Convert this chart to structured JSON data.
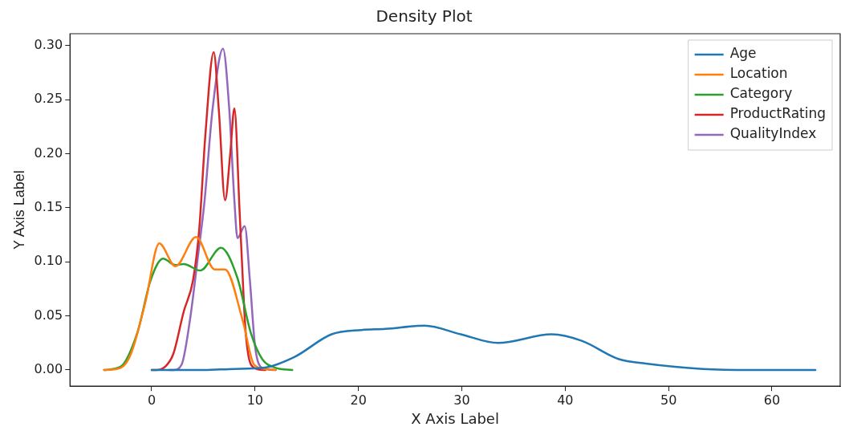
{
  "chart_data": {
    "type": "line",
    "title": "Density Plot",
    "xlabel": "X Axis Label",
    "ylabel": "Y Axis Label",
    "xlim": [
      -7.9,
      66.6
    ],
    "ylim": [
      -0.015,
      0.311
    ],
    "xticks": [
      0,
      10,
      20,
      30,
      40,
      50,
      60
    ],
    "yticks": [
      {
        "value": 0,
        "label": "0.00"
      },
      {
        "value": 0.05,
        "label": "0.05"
      },
      {
        "value": 0.1,
        "label": "0.10"
      },
      {
        "value": 0.15,
        "label": "0.15"
      },
      {
        "value": 0.2,
        "label": "0.20"
      },
      {
        "value": 0.25,
        "label": "0.25"
      },
      {
        "value": 0.3,
        "label": "0.30"
      }
    ],
    "legend": "top right",
    "grid": false,
    "marker": "none",
    "line_style": "solid",
    "series": [
      {
        "name": "Age",
        "color": "#1f77b4",
        "x": [
          0,
          5,
          8,
          10.8,
          13.8,
          17.4,
          20.3,
          22.6,
          26.4,
          29.9,
          33.5,
          38.7,
          41.6,
          45.2,
          47.8,
          53.3,
          58,
          64.2
        ],
        "values": [
          0,
          0,
          0.001,
          0.002,
          0.012,
          0.033,
          0.037,
          0.038,
          0.041,
          0.033,
          0.025,
          0.033,
          0.027,
          0.01,
          0.006,
          0.001,
          0,
          0
        ]
      },
      {
        "name": "Location",
        "color": "#ff7f0e",
        "x": [
          -4.6,
          -3,
          -2,
          -0.6,
          0.73,
          2.3,
          4.3,
          6.1,
          7.1,
          8.8,
          9.9,
          11,
          12
        ],
        "values": [
          0,
          0.002,
          0.015,
          0.063,
          0.117,
          0.096,
          0.123,
          0.093,
          0.093,
          0.046,
          0.005,
          0.001,
          0
        ]
      },
      {
        "name": "Category",
        "color": "#2ca02c",
        "x": [
          -4.6,
          -3,
          -1.4,
          -0.1,
          1.1,
          2.3,
          3.1,
          4.7,
          6.7,
          8.3,
          9.6,
          10.7,
          12,
          13.6
        ],
        "values": [
          0,
          0.003,
          0.034,
          0.083,
          0.103,
          0.097,
          0.098,
          0.092,
          0.113,
          0.085,
          0.034,
          0.01,
          0.002,
          0
        ]
      },
      {
        "name": "ProductRating",
        "color": "#d62728",
        "x": [
          0,
          0.5,
          1.3,
          2.1,
          3.1,
          4,
          4.6,
          5.2,
          6,
          6.5,
          7.1,
          7.6,
          8,
          8.5,
          8.7,
          9.1,
          9.9,
          11
        ],
        "values": [
          0,
          0,
          0.003,
          0.015,
          0.054,
          0.083,
          0.13,
          0.218,
          0.294,
          0.24,
          0.157,
          0.2,
          0.242,
          0.148,
          0.107,
          0.034,
          0.002,
          0
        ]
      },
      {
        "name": "QualityIndex",
        "color": "#9467bd",
        "x": [
          1.7,
          2.1,
          2.9,
          3.7,
          4.5,
          5.1,
          5.9,
          6.9,
          7.5,
          8,
          8.3,
          9,
          9.5,
          10,
          10.7,
          12
        ],
        "values": [
          0,
          0,
          0.005,
          0.046,
          0.107,
          0.155,
          0.242,
          0.297,
          0.242,
          0.157,
          0.122,
          0.133,
          0.083,
          0.022,
          0.002,
          0
        ]
      }
    ]
  }
}
